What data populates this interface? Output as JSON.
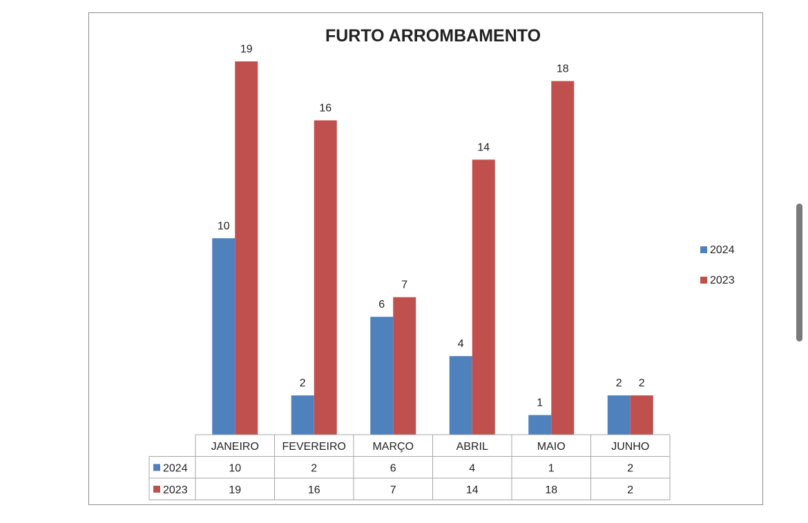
{
  "chart_data": {
    "type": "bar",
    "title": "FURTO ARROMBAMENTO",
    "categories": [
      "JANEIRO",
      "FEVEREIRO",
      "MARÇO",
      "ABRIL",
      "MAIO",
      "JUNHO"
    ],
    "series": [
      {
        "name": "2024",
        "values": [
          10,
          2,
          6,
          4,
          1,
          2
        ],
        "color": "#4f81bd"
      },
      {
        "name": "2023",
        "values": [
          19,
          16,
          7,
          14,
          18,
          2
        ],
        "color": "#c0504d"
      }
    ],
    "ylim": [
      0,
      19
    ],
    "data_labels": true,
    "data_table": true,
    "legend": "right",
    "grid": false
  }
}
